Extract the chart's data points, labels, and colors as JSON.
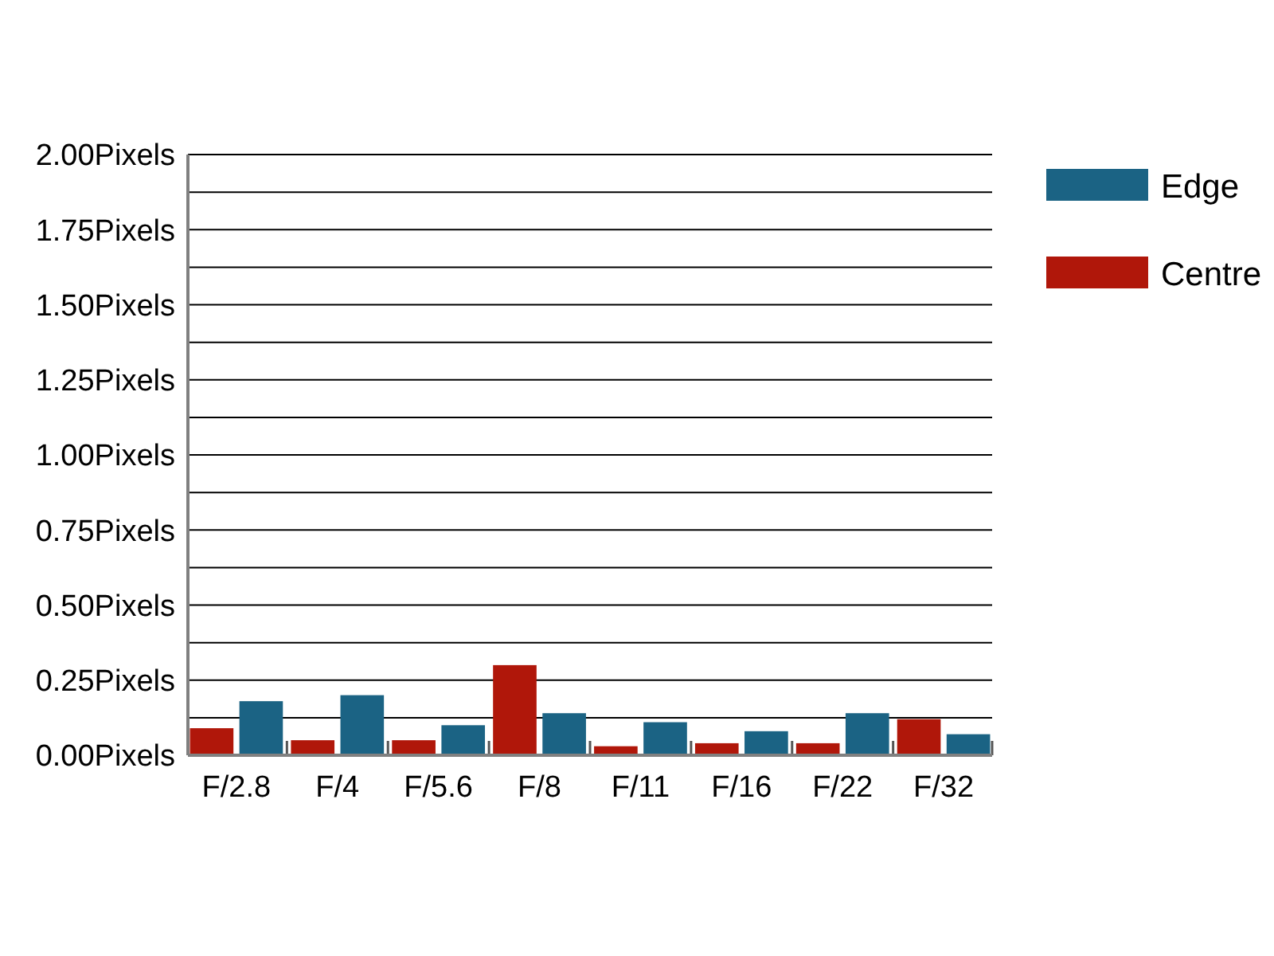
{
  "chart_data": {
    "type": "bar",
    "categories": [
      "F/2.8",
      "F/4",
      "F/5.6",
      "F/8",
      "F/11",
      "F/16",
      "F/22",
      "F/32"
    ],
    "series": [
      {
        "name": "Centre",
        "color": "#b0170a",
        "values": [
          0.09,
          0.05,
          0.05,
          0.3,
          0.03,
          0.04,
          0.04,
          0.12
        ]
      },
      {
        "name": "Edge",
        "color": "#1b6384",
        "values": [
          0.18,
          0.2,
          0.1,
          0.14,
          0.11,
          0.08,
          0.14,
          0.07
        ]
      }
    ],
    "ylim": [
      0,
      2
    ],
    "yticks": [
      {
        "value": 0,
        "label": "0.00Pixels"
      },
      {
        "value": 0.125,
        "label": null
      },
      {
        "value": 0.25,
        "label": "0.25Pixels"
      },
      {
        "value": 0.375,
        "label": null
      },
      {
        "value": 0.5,
        "label": "0.50Pixels"
      },
      {
        "value": 0.625,
        "label": null
      },
      {
        "value": 0.75,
        "label": "0.75Pixels"
      },
      {
        "value": 0.875,
        "label": null
      },
      {
        "value": 1,
        "label": "1.00Pixels"
      },
      {
        "value": 1.125,
        "label": null
      },
      {
        "value": 1.25,
        "label": "1.25Pixels"
      },
      {
        "value": 1.375,
        "label": null
      },
      {
        "value": 1.5,
        "label": "1.50Pixels"
      },
      {
        "value": 1.625,
        "label": null
      },
      {
        "value": 1.75,
        "label": "1.75Pixels"
      },
      {
        "value": 1.875,
        "label": null
      },
      {
        "value": 2,
        "label": "2.00Pixels"
      }
    ],
    "grid": "y",
    "legend": "top right"
  }
}
